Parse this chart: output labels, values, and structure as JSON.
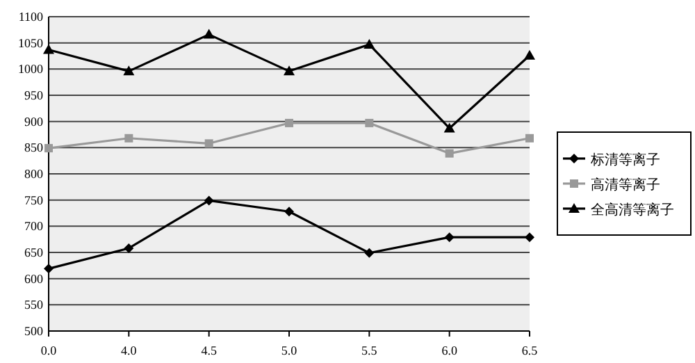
{
  "chart_data": {
    "type": "line",
    "categories": [
      "0.0",
      "4.0",
      "4.5",
      "5.0",
      "5.5",
      "6.0",
      "6.5"
    ],
    "series": [
      {
        "name": "标清等离子",
        "color": "#000000",
        "marker": "diamond",
        "values": [
          619,
          658,
          749,
          728,
          649,
          679,
          679
        ]
      },
      {
        "name": "高清等离子",
        "color": "#999999",
        "marker": "square",
        "values": [
          849,
          868,
          858,
          897,
          897,
          839,
          868
        ]
      },
      {
        "name": "全高清等离子",
        "color": "#000000",
        "marker": "triangle",
        "values": [
          1037,
          996,
          1066,
          996,
          1047,
          887,
          1026
        ]
      }
    ],
    "ylim": [
      500,
      1100
    ],
    "yticks": [
      500,
      550,
      600,
      650,
      700,
      750,
      800,
      850,
      900,
      950,
      1000,
      1050,
      1100
    ],
    "grid": "y",
    "legend": "right",
    "line_style": "solid"
  }
}
